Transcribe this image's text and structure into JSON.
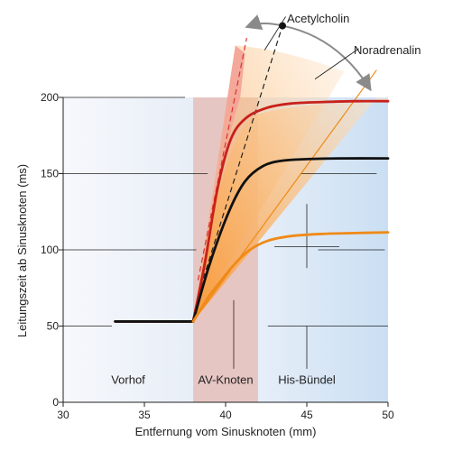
{
  "chart_data": {
    "type": "line",
    "xlabel": "Entfernung vom Sinusknoten (mm)",
    "ylabel": "Leitungszeit ab Sinusknoten (ms)",
    "xlim": [
      30,
      50
    ],
    "ylim": [
      0,
      200
    ],
    "x_ticks": [
      30,
      35,
      40,
      45,
      50
    ],
    "y_ticks": [
      0,
      50,
      100,
      150,
      200
    ],
    "regions": [
      {
        "label": "Vorhof",
        "x_from": 30,
        "x_to": 38,
        "color": "#eef2f8"
      },
      {
        "label": "AV-Knoten",
        "x_from": 38,
        "x_to": 42,
        "color": "#e6c6c3"
      },
      {
        "label": "His-Bündel",
        "x_from": 42,
        "x_to": 50,
        "color": "#d4e4f4"
      }
    ],
    "series": [
      {
        "name": "",
        "color": "#c8211b",
        "points": [
          [
            33.2,
            53
          ],
          [
            38,
            53
          ],
          [
            38.7,
            90
          ],
          [
            39.5,
            140
          ],
          [
            40.3,
            172
          ],
          [
            41.2,
            186
          ],
          [
            42.5,
            193
          ],
          [
            44,
            196
          ],
          [
            46,
            197
          ],
          [
            48,
            197.5
          ],
          [
            50,
            197.5
          ]
        ]
      },
      {
        "name": "",
        "color": "#111111",
        "points": [
          [
            33.2,
            53
          ],
          [
            38,
            53
          ],
          [
            39,
            90
          ],
          [
            40.2,
            125
          ],
          [
            41.2,
            145
          ],
          [
            42.3,
            155
          ],
          [
            43.5,
            158.5
          ],
          [
            45,
            159.5
          ],
          [
            47,
            160
          ],
          [
            50,
            160
          ]
        ]
      },
      {
        "name": "",
        "color": "#ef8a17",
        "points": [
          [
            38,
            53
          ],
          [
            39,
            70
          ],
          [
            40.5,
            90
          ],
          [
            41.5,
            100
          ],
          [
            42.6,
            106
          ],
          [
            44,
            109
          ],
          [
            46,
            110.5
          ],
          [
            48,
            111
          ],
          [
            50,
            111.5
          ]
        ]
      }
    ],
    "annotations": [
      {
        "label": "Acetylcholin",
        "color": "#f4b0a8"
      },
      {
        "label": "Noradrenalin",
        "color": "#f7a44a"
      }
    ],
    "grid": false,
    "legend": "none"
  }
}
